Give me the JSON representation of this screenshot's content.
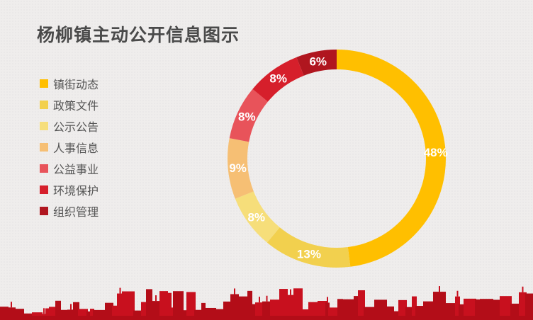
{
  "title": "杨柳镇主动公开信息图示",
  "chart_data": {
    "type": "pie",
    "donut": true,
    "title": "杨柳镇主动公开信息图示",
    "legend_position": "left",
    "categories": [
      "镇街动态",
      "政策文件",
      "公示公告",
      "人事信息",
      "公益事业",
      "环境保护",
      "组织管理"
    ],
    "values": [
      48,
      13,
      8,
      9,
      8,
      8,
      6
    ],
    "labels": [
      "48%",
      "13%",
      "8%",
      "9%",
      "8%",
      "8%",
      "6%"
    ],
    "colors": [
      "#FFBF00",
      "#F2D04E",
      "#F6DE7A",
      "#F6BF74",
      "#E8535A",
      "#D61F2B",
      "#B0161F"
    ]
  }
}
